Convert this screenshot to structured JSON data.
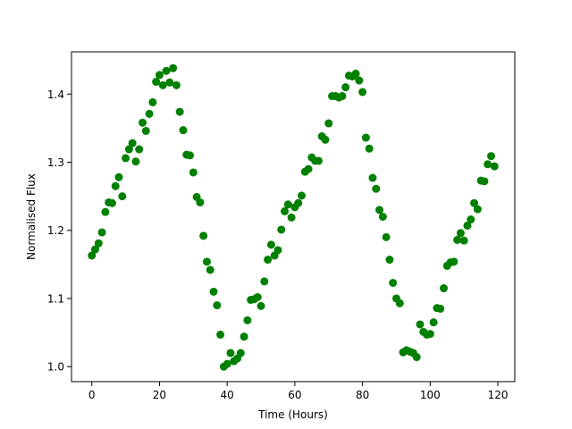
{
  "chart_data": {
    "type": "scatter",
    "xlabel": "Time (Hours)",
    "ylabel": "Normalised Flux",
    "xlim": [
      -6,
      125
    ],
    "ylim": [
      0.978,
      1.462
    ],
    "xticks": [
      0,
      20,
      40,
      60,
      80,
      100,
      120
    ],
    "yticks": [
      1.0,
      1.1,
      1.2,
      1.3,
      1.4
    ],
    "xtick_labels": [
      "0",
      "20",
      "40",
      "60",
      "80",
      "100",
      "120"
    ],
    "ytick_labels": [
      "1.0",
      "1.1",
      "1.2",
      "1.3",
      "1.4"
    ],
    "grid": false,
    "marker_color": "#008000",
    "series": [
      {
        "points": [
          [
            0,
            1.163
          ],
          [
            1,
            1.172
          ],
          [
            2,
            1.181
          ],
          [
            3,
            1.197
          ],
          [
            4,
            1.227
          ],
          [
            5,
            1.241
          ],
          [
            6,
            1.24
          ],
          [
            7,
            1.265
          ],
          [
            8,
            1.278
          ],
          [
            9,
            1.25
          ],
          [
            10,
            1.306
          ],
          [
            11,
            1.319
          ],
          [
            12,
            1.328
          ],
          [
            13,
            1.301
          ],
          [
            14,
            1.319
          ],
          [
            15,
            1.358
          ],
          [
            16,
            1.346
          ],
          [
            17,
            1.371
          ],
          [
            18,
            1.388
          ],
          [
            19,
            1.418
          ],
          [
            20,
            1.428
          ],
          [
            21,
            1.413
          ],
          [
            22,
            1.434
          ],
          [
            23,
            1.417
          ],
          [
            24,
            1.438
          ],
          [
            25,
            1.413
          ],
          [
            26,
            1.374
          ],
          [
            27,
            1.347
          ],
          [
            28,
            1.311
          ],
          [
            29,
            1.31
          ],
          [
            30,
            1.285
          ],
          [
            31,
            1.249
          ],
          [
            32,
            1.241
          ],
          [
            33,
            1.192
          ],
          [
            34,
            1.154
          ],
          [
            35,
            1.142
          ],
          [
            36,
            1.11
          ],
          [
            37,
            1.09
          ],
          [
            38,
            1.047
          ],
          [
            39,
            1.0
          ],
          [
            40,
            1.004
          ],
          [
            41,
            1.02
          ],
          [
            42,
            1.008
          ],
          [
            43,
            1.012
          ],
          [
            44,
            1.02
          ],
          [
            45,
            1.044
          ],
          [
            46,
            1.068
          ],
          [
            47,
            1.098
          ],
          [
            48,
            1.099
          ],
          [
            49,
            1.102
          ],
          [
            50,
            1.089
          ],
          [
            51,
            1.125
          ],
          [
            52,
            1.157
          ],
          [
            53,
            1.179
          ],
          [
            54,
            1.163
          ],
          [
            55,
            1.171
          ],
          [
            56,
            1.201
          ],
          [
            57,
            1.228
          ],
          [
            58,
            1.238
          ],
          [
            59,
            1.219
          ],
          [
            60,
            1.234
          ],
          [
            61,
            1.24
          ],
          [
            62,
            1.251
          ],
          [
            63,
            1.286
          ],
          [
            64,
            1.29
          ],
          [
            65,
            1.307
          ],
          [
            66,
            1.302
          ],
          [
            67,
            1.302
          ],
          [
            68,
            1.338
          ],
          [
            69,
            1.333
          ],
          [
            70,
            1.357
          ],
          [
            71,
            1.397
          ],
          [
            72,
            1.397
          ],
          [
            73,
            1.395
          ],
          [
            74,
            1.397
          ],
          [
            75,
            1.41
          ],
          [
            76,
            1.427
          ],
          [
            77,
            1.426
          ],
          [
            78,
            1.43
          ],
          [
            79,
            1.42
          ],
          [
            80,
            1.403
          ],
          [
            81,
            1.336
          ],
          [
            82,
            1.32
          ],
          [
            83,
            1.277
          ],
          [
            84,
            1.261
          ],
          [
            85,
            1.23
          ],
          [
            86,
            1.22
          ],
          [
            87,
            1.19
          ],
          [
            88,
            1.157
          ],
          [
            89,
            1.123
          ],
          [
            90,
            1.1
          ],
          [
            91,
            1.093
          ],
          [
            92,
            1.021
          ],
          [
            93,
            1.024
          ],
          [
            94,
            1.022
          ],
          [
            95,
            1.02
          ],
          [
            96,
            1.014
          ],
          [
            97,
            1.062
          ],
          [
            98,
            1.051
          ],
          [
            99,
            1.047
          ],
          [
            100,
            1.048
          ],
          [
            101,
            1.065
          ],
          [
            102,
            1.086
          ],
          [
            103,
            1.085
          ],
          [
            104,
            1.115
          ],
          [
            105,
            1.148
          ],
          [
            106,
            1.153
          ],
          [
            107,
            1.154
          ],
          [
            108,
            1.186
          ],
          [
            109,
            1.196
          ],
          [
            110,
            1.185
          ],
          [
            111,
            1.207
          ],
          [
            112,
            1.216
          ],
          [
            113,
            1.24
          ],
          [
            114,
            1.231
          ],
          [
            115,
            1.273
          ],
          [
            116,
            1.272
          ],
          [
            117,
            1.297
          ],
          [
            118,
            1.309
          ],
          [
            119,
            1.294
          ]
        ]
      }
    ]
  }
}
